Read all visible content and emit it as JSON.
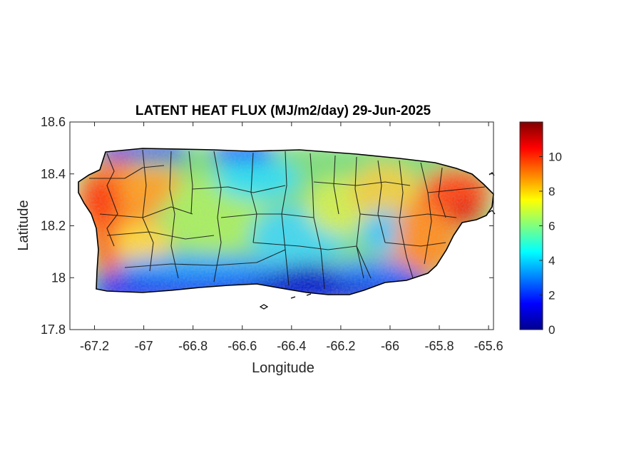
{
  "title": "LATENT HEAT FLUX (MJ/m2/day) 29-Jun-2025",
  "xlabel": "Longitude",
  "ylabel": "Latitude",
  "map": {
    "region": "Puerto Rico",
    "variable": "Latent heat flux",
    "units": "MJ/m2/day",
    "date": "29-Jun-2025",
    "colormap": "jet",
    "xlim": [
      -67.3,
      -65.58
    ],
    "ylim": [
      17.8,
      18.6
    ],
    "x_ticks": [
      -67.2,
      -67,
      -66.8,
      -66.6,
      -66.4,
      -66.2,
      -66,
      -65.8,
      -65.6
    ],
    "x_tick_labels": [
      "-67.2",
      "-67",
      "-66.8",
      "-66.6",
      "-66.4",
      "-66.2",
      "-66",
      "-65.8",
      "-65.6"
    ],
    "y_ticks": [
      18.6,
      18.4,
      18.2,
      18,
      17.8
    ],
    "y_tick_labels": [
      "18.6",
      "18.4",
      "18.2",
      "18",
      "17.8"
    ],
    "grid": false,
    "features": [
      "municipality boundaries",
      "coastline"
    ]
  },
  "colorbar": {
    "range": [
      0,
      12
    ],
    "ticks": [
      0,
      2,
      4,
      6,
      8,
      10
    ],
    "tick_labels": [
      "0",
      "2",
      "4",
      "6",
      "8",
      "10"
    ],
    "placement": "right"
  }
}
